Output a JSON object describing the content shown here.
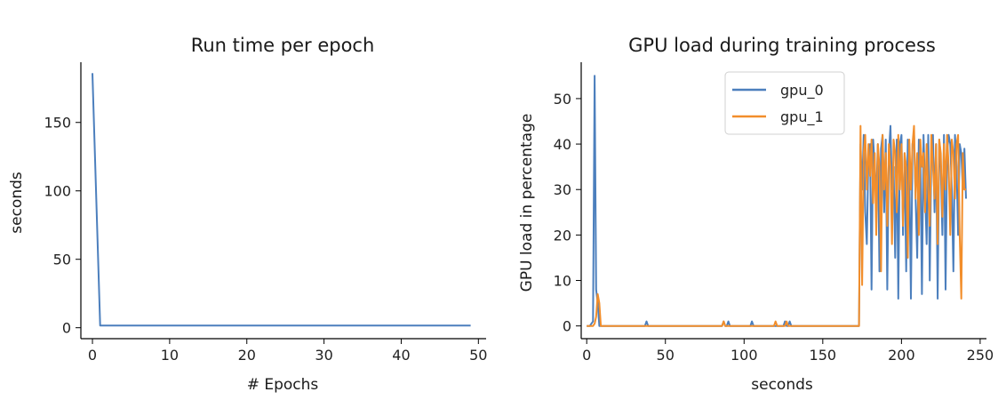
{
  "chart_data": [
    {
      "type": "line",
      "title": "Run time per epoch",
      "xlabel": "# Epochs",
      "ylabel": "seconds",
      "xlim": [
        -1.5,
        51
      ],
      "ylim": [
        -8,
        194
      ],
      "xticks": [
        0,
        10,
        20,
        30,
        40,
        50
      ],
      "yticks": [
        0,
        50,
        100,
        150
      ],
      "grid": false,
      "legend": null,
      "series": [
        {
          "color": "#4c7fbd",
          "x": [
            0,
            1,
            2,
            3,
            4,
            5,
            6,
            7,
            8,
            9,
            10,
            11,
            12,
            13,
            14,
            15,
            16,
            17,
            18,
            19,
            20,
            21,
            22,
            23,
            24,
            25,
            26,
            27,
            28,
            29,
            30,
            31,
            32,
            33,
            34,
            35,
            36,
            37,
            38,
            39,
            40,
            41,
            42,
            43,
            44,
            45,
            46,
            47,
            48,
            49
          ],
          "values": [
            186,
            1.6,
            1.6,
            1.6,
            1.6,
            1.6,
            1.6,
            1.6,
            1.6,
            1.6,
            1.6,
            1.6,
            1.6,
            1.6,
            1.6,
            1.6,
            1.6,
            1.6,
            1.6,
            1.6,
            1.6,
            1.6,
            1.6,
            1.6,
            1.6,
            1.6,
            1.6,
            1.6,
            1.6,
            1.6,
            1.6,
            1.6,
            1.6,
            1.6,
            1.6,
            1.6,
            1.6,
            1.6,
            1.6,
            1.6,
            1.6,
            1.6,
            1.6,
            1.6,
            1.6,
            1.6,
            1.6,
            1.6,
            1.6,
            1.6
          ]
        }
      ]
    },
    {
      "type": "line",
      "title": "GPU load during training process",
      "xlabel": "seconds",
      "ylabel": "GPU load in percentage",
      "xlim": [
        -3.5,
        254
      ],
      "ylim": [
        -2.8,
        58
      ],
      "xticks": [
        0,
        50,
        100,
        150,
        200,
        250
      ],
      "yticks": [
        0,
        10,
        20,
        30,
        40,
        50
      ],
      "grid": false,
      "legend": "upper center",
      "series": [
        {
          "name": "gpu_0",
          "color": "#4c7fbd",
          "x": [
            0,
            1,
            2,
            3,
            4,
            5,
            6,
            7,
            8,
            9,
            10,
            11,
            12,
            20,
            30,
            37,
            38,
            39,
            50,
            60,
            70,
            80,
            86,
            87,
            88,
            89,
            90,
            91,
            92,
            100,
            104,
            105,
            106,
            110,
            120,
            125,
            126,
            127,
            128,
            129,
            130,
            140,
            150,
            160,
            170,
            173,
            174,
            175,
            176,
            177,
            178,
            179,
            180,
            181,
            182,
            183,
            184,
            185,
            186,
            187,
            188,
            189,
            190,
            191,
            192,
            193,
            194,
            195,
            196,
            197,
            198,
            199,
            200,
            201,
            202,
            203,
            204,
            205,
            206,
            207,
            208,
            209,
            210,
            211,
            212,
            213,
            214,
            215,
            216,
            217,
            218,
            219,
            220,
            221,
            222,
            223,
            224,
            225,
            226,
            227,
            228,
            229,
            230,
            231,
            232,
            233,
            234,
            235,
            236,
            237,
            238,
            239,
            240,
            241
          ],
          "values": [
            0,
            0,
            0,
            0.5,
            1,
            55,
            8,
            5,
            0,
            0,
            0,
            0,
            0,
            0,
            0,
            0,
            1,
            0,
            0,
            0,
            0,
            0,
            0,
            1,
            0,
            0,
            1,
            0,
            0,
            0,
            0,
            1,
            0,
            0,
            0,
            0,
            1,
            0,
            0,
            1,
            0,
            0,
            0,
            0,
            0,
            0,
            40,
            30,
            42,
            25,
            18,
            38,
            40,
            8,
            41,
            35,
            28,
            40,
            12,
            39,
            42,
            25,
            41,
            8,
            38,
            44,
            30,
            35,
            15,
            41,
            6,
            40,
            42,
            20,
            38,
            12,
            41,
            35,
            6,
            40,
            42,
            28,
            15,
            41,
            38,
            7,
            42,
            30,
            18,
            42,
            10,
            38,
            42,
            25,
            40,
            6,
            41,
            35,
            20,
            42,
            8,
            38,
            42,
            40,
            30,
            12,
            42,
            35,
            20,
            40,
            38,
            30,
            39,
            28
          ]
        },
        {
          "name": "gpu_1",
          "color": "#f28e2b",
          "x": [
            0,
            1,
            2,
            3,
            4,
            5,
            6,
            7,
            8,
            9,
            10,
            20,
            30,
            40,
            50,
            60,
            70,
            80,
            86,
            87,
            88,
            90,
            100,
            110,
            119,
            120,
            121,
            126,
            127,
            128,
            130,
            140,
            150,
            160,
            170,
            173,
            174,
            175,
            176,
            177,
            178,
            179,
            180,
            181,
            182,
            183,
            184,
            185,
            186,
            187,
            188,
            189,
            190,
            191,
            192,
            193,
            194,
            195,
            196,
            197,
            198,
            199,
            200,
            201,
            202,
            203,
            204,
            205,
            206,
            207,
            208,
            209,
            210,
            211,
            212,
            213,
            214,
            215,
            216,
            217,
            218,
            219,
            220,
            221,
            222,
            223,
            224,
            225,
            226,
            227,
            228,
            229,
            230,
            231,
            232,
            233,
            234,
            235,
            236,
            237,
            238,
            239,
            240,
            241
          ],
          "values": [
            0,
            0,
            0,
            0,
            0,
            0.5,
            2,
            7,
            5,
            0,
            0,
            0,
            0,
            0,
            0,
            0,
            0,
            0,
            0,
            1,
            0,
            0,
            0,
            0,
            0,
            1,
            0,
            0,
            1,
            0,
            0,
            0,
            0,
            0,
            0,
            0,
            44,
            9,
            38,
            42,
            30,
            40,
            33,
            41,
            27,
            38,
            20,
            40,
            35,
            12,
            42,
            30,
            38,
            22,
            40,
            35,
            18,
            41,
            38,
            25,
            42,
            30,
            40,
            22,
            38,
            35,
            15,
            41,
            30,
            40,
            44,
            28,
            38,
            20,
            41,
            35,
            38,
            25,
            40,
            30,
            22,
            42,
            35,
            28,
            40,
            18,
            41,
            38,
            24,
            40,
            30,
            42,
            35,
            20,
            41,
            38,
            28,
            40,
            42,
            20,
            6,
            38,
            30,
            30
          ]
        }
      ]
    }
  ]
}
